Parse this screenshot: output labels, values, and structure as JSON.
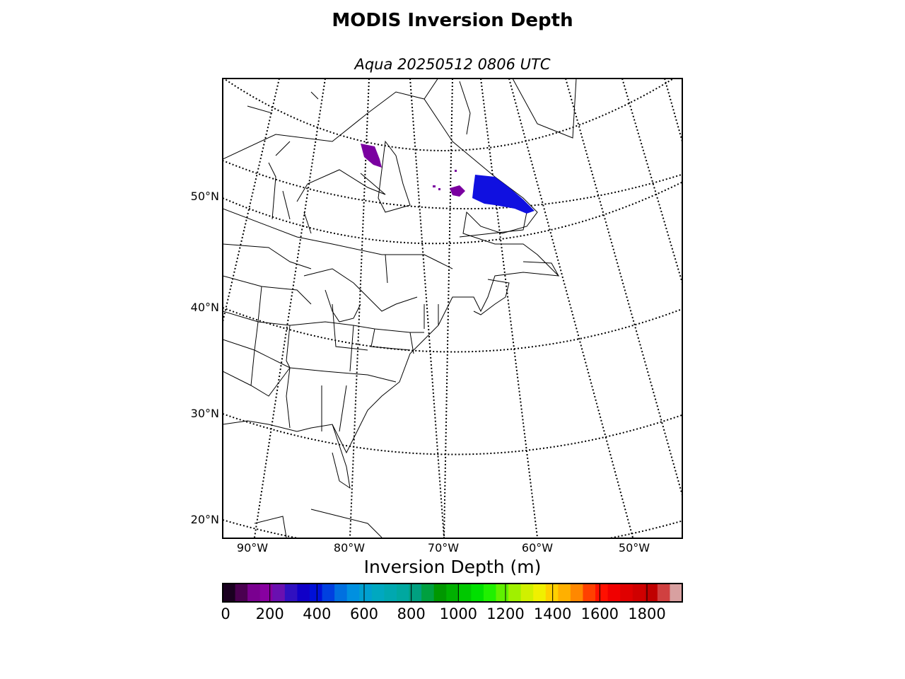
{
  "title": "MODIS Inversion Depth",
  "subtitle": "Aqua 20250512 0806 UTC",
  "lat_labels": [
    "50°N",
    "40°N",
    "30°N",
    "20°N"
  ],
  "lon_labels": [
    "90°W",
    "80°W",
    "70°W",
    "60°W",
    "50°W"
  ],
  "colorbar": {
    "title": "Inversion Depth (m)",
    "ticks": [
      "0",
      "200",
      "400",
      "600",
      "800",
      "1000",
      "1200",
      "1400",
      "1600",
      "1800"
    ],
    "colors": [
      "#1a0020",
      "#4a0050",
      "#7a0090",
      "#8800a0",
      "#6a10b0",
      "#3010c0",
      "#1000c8",
      "#0010d8",
      "#0040e0",
      "#0070e0",
      "#0090e0",
      "#00a0d0",
      "#00a8c0",
      "#00a8b0",
      "#00a8a0",
      "#00a080",
      "#00a040",
      "#009800",
      "#00b000",
      "#00c800",
      "#00e000",
      "#20f000",
      "#60f000",
      "#a0f000",
      "#d0f000",
      "#f0f000",
      "#ffd000",
      "#ffb000",
      "#ff8800",
      "#ff4000",
      "#ff1000",
      "#f00000",
      "#e00000",
      "#d00000",
      "#c00000",
      "#d04040",
      "#d8a0a0"
    ]
  },
  "data_colors": {
    "purple": "#7a00a0",
    "blue": "#1010e0"
  }
}
